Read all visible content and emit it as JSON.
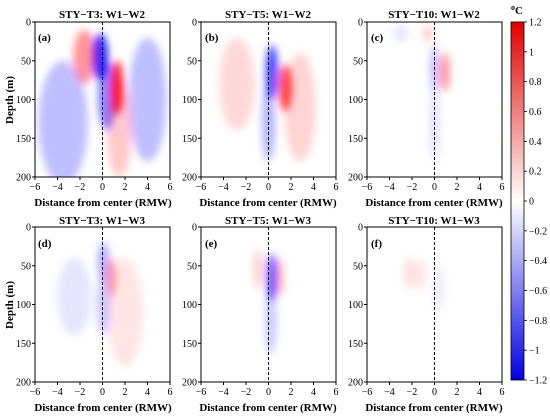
{
  "chart_data": {
    "type": "heatmap",
    "xlabel": "Distance from center (RMW)",
    "ylabel": "Depth (m)",
    "xlim": [
      -6,
      6
    ],
    "ylim": [
      200,
      0
    ],
    "x_ticks": [
      "−6",
      "−4",
      "−2",
      "0",
      "2",
      "4",
      "6"
    ],
    "y_ticks": [
      "0",
      "50",
      "100",
      "150",
      "200"
    ],
    "colorbar": {
      "unit_base": "C",
      "unit_sup": "o",
      "min": -1.2,
      "max": 1.2,
      "ticks": [
        "1.2",
        "1",
        "0.8",
        "0.6",
        "0.4",
        "0.2",
        "0",
        "−0.2",
        "−0.4",
        "−0.6",
        "−0.8",
        "−1",
        "−1.2"
      ],
      "colors": {
        "negative": "#0000ff",
        "zero": "#ffffff",
        "positive": "#ff0000"
      }
    },
    "panels": [
      {
        "title": "STY−T3: W1−W2",
        "label": "(a)",
        "features": [
          {
            "x": -0.2,
            "depth": 45,
            "rx": 0.7,
            "rz": 30,
            "value": -1.0
          },
          {
            "x": 0.4,
            "depth": 95,
            "rx": 0.8,
            "rz": 45,
            "value": -0.6
          },
          {
            "x": -1.6,
            "depth": 45,
            "rx": 1.0,
            "rz": 35,
            "value": 0.5
          },
          {
            "x": 1.3,
            "depth": 85,
            "rx": 0.55,
            "rz": 35,
            "value": 1.05
          },
          {
            "x": 1.5,
            "depth": 140,
            "rx": 1.1,
            "rz": 60,
            "value": 0.25
          },
          {
            "x": -3.5,
            "depth": 130,
            "rx": 2.2,
            "rz": 80,
            "value": -0.3
          },
          {
            "x": 4.0,
            "depth": 100,
            "rx": 1.7,
            "rz": 80,
            "value": -0.3
          }
        ]
      },
      {
        "title": "STY−T5: W1−W2",
        "label": "(b)",
        "features": [
          {
            "x": 0.3,
            "depth": 65,
            "rx": 0.55,
            "rz": 35,
            "value": -0.85
          },
          {
            "x": 0.0,
            "depth": 130,
            "rx": 0.6,
            "rz": 50,
            "value": -0.35
          },
          {
            "x": 1.5,
            "depth": 85,
            "rx": 0.6,
            "rz": 30,
            "value": 0.85
          },
          {
            "x": 2.8,
            "depth": 110,
            "rx": 1.4,
            "rz": 70,
            "value": 0.2
          },
          {
            "x": -2.8,
            "depth": 80,
            "rx": 1.6,
            "rz": 60,
            "value": 0.18
          }
        ]
      },
      {
        "title": "STY−T10: W1−W2",
        "label": "(c)",
        "features": [
          {
            "x": 0.0,
            "depth": 60,
            "rx": 0.4,
            "rz": 30,
            "value": -0.3
          },
          {
            "x": 0.0,
            "depth": 130,
            "rx": 0.5,
            "rz": 50,
            "value": -0.12
          },
          {
            "x": 0.9,
            "depth": 65,
            "rx": 0.5,
            "rz": 25,
            "value": 0.45
          },
          {
            "x": -0.6,
            "depth": 15,
            "rx": 0.4,
            "rz": 10,
            "value": 0.25
          },
          {
            "x": -3.0,
            "depth": 15,
            "rx": 0.6,
            "rz": 10,
            "value": -0.12
          }
        ]
      },
      {
        "title": "STY−T3: W1−W3",
        "label": "(d)",
        "features": [
          {
            "x": 0.1,
            "depth": 45,
            "rx": 0.5,
            "rz": 25,
            "value": -0.4
          },
          {
            "x": 0.8,
            "depth": 65,
            "rx": 0.4,
            "rz": 25,
            "value": 0.45
          },
          {
            "x": 0.1,
            "depth": 100,
            "rx": 0.6,
            "rz": 40,
            "value": -0.25
          },
          {
            "x": 2.0,
            "depth": 110,
            "rx": 1.6,
            "rz": 70,
            "value": 0.12
          },
          {
            "x": -2.5,
            "depth": 90,
            "rx": 1.5,
            "rz": 50,
            "value": -0.12
          }
        ]
      },
      {
        "title": "STY−T5: W1−W3",
        "label": "(e)",
        "features": [
          {
            "x": 0.3,
            "depth": 65,
            "rx": 0.45,
            "rz": 30,
            "value": -0.8
          },
          {
            "x": 1.0,
            "depth": 65,
            "rx": 0.4,
            "rz": 25,
            "value": 0.3
          },
          {
            "x": -0.9,
            "depth": 55,
            "rx": 0.5,
            "rz": 25,
            "value": 0.2
          },
          {
            "x": 0.2,
            "depth": 120,
            "rx": 0.5,
            "rz": 45,
            "value": -0.25
          }
        ]
      },
      {
        "title": "STY−T10: W1−W3",
        "label": "(f)",
        "features": [
          {
            "x": -2.2,
            "depth": 60,
            "rx": 0.5,
            "rz": 20,
            "value": 0.15
          },
          {
            "x": -1.2,
            "depth": 62,
            "rx": 0.5,
            "rz": 20,
            "value": 0.12
          },
          {
            "x": 0.4,
            "depth": 80,
            "rx": 0.5,
            "rz": 30,
            "value": -0.08
          }
        ]
      }
    ]
  }
}
